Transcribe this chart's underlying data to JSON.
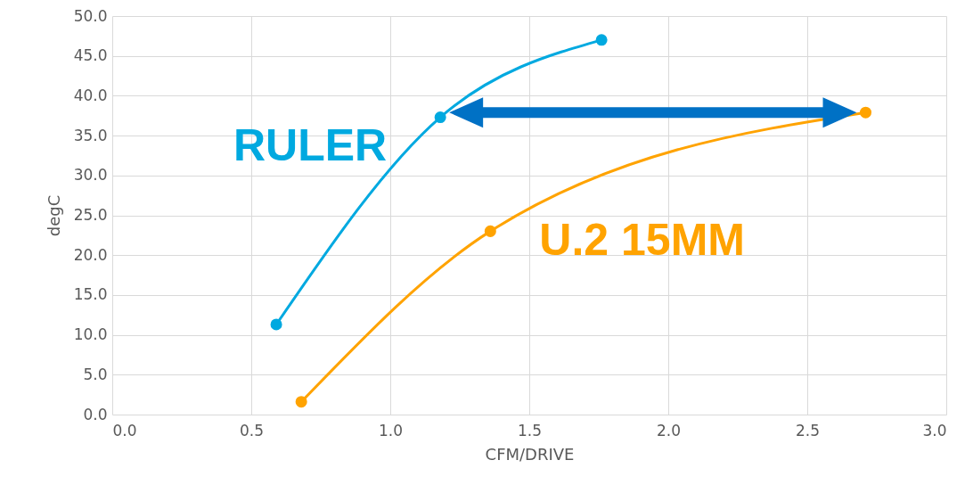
{
  "chart_data": {
    "type": "line",
    "xlabel": "CFM/DRIVE",
    "ylabel": "degC",
    "xlim": [
      0,
      3
    ],
    "xticks": [
      {
        "value": 0,
        "label": "0.0"
      },
      {
        "value": 0.5,
        "label": "0.5"
      },
      {
        "value": 1,
        "label": "1.0"
      },
      {
        "value": 1.5,
        "label": "1.5"
      },
      {
        "value": 2,
        "label": "2.0"
      },
      {
        "value": 2.5,
        "label": "2.5"
      },
      {
        "value": 3,
        "label": "3.0"
      }
    ],
    "ylim": [
      0,
      50
    ],
    "yticks": [
      {
        "value": 0,
        "label": "0.0"
      },
      {
        "value": 5,
        "label": "5.0"
      },
      {
        "value": 10,
        "label": "10.0"
      },
      {
        "value": 15,
        "label": "15.0"
      },
      {
        "value": 20,
        "label": "20.0"
      },
      {
        "value": 25,
        "label": "25.0"
      },
      {
        "value": 30,
        "label": "30.0"
      },
      {
        "value": 35,
        "label": "35.0"
      },
      {
        "value": 40,
        "label": "40.0"
      },
      {
        "value": 45,
        "label": "45.0"
      },
      {
        "value": 50,
        "label": "50.0"
      }
    ],
    "grid": true,
    "marker": "circle",
    "line_style": "solid",
    "series": [
      {
        "name": "RULER",
        "color": "#00a9e0",
        "x": [
          0.59,
          1.18,
          1.76
        ],
        "values": [
          11.3,
          37.3,
          47.0
        ]
      },
      {
        "name": "U.2 15MM",
        "color": "#ffa300",
        "x": [
          0.68,
          1.36,
          2.71
        ],
        "values": [
          1.6,
          23.0,
          37.9
        ]
      }
    ]
  }
}
